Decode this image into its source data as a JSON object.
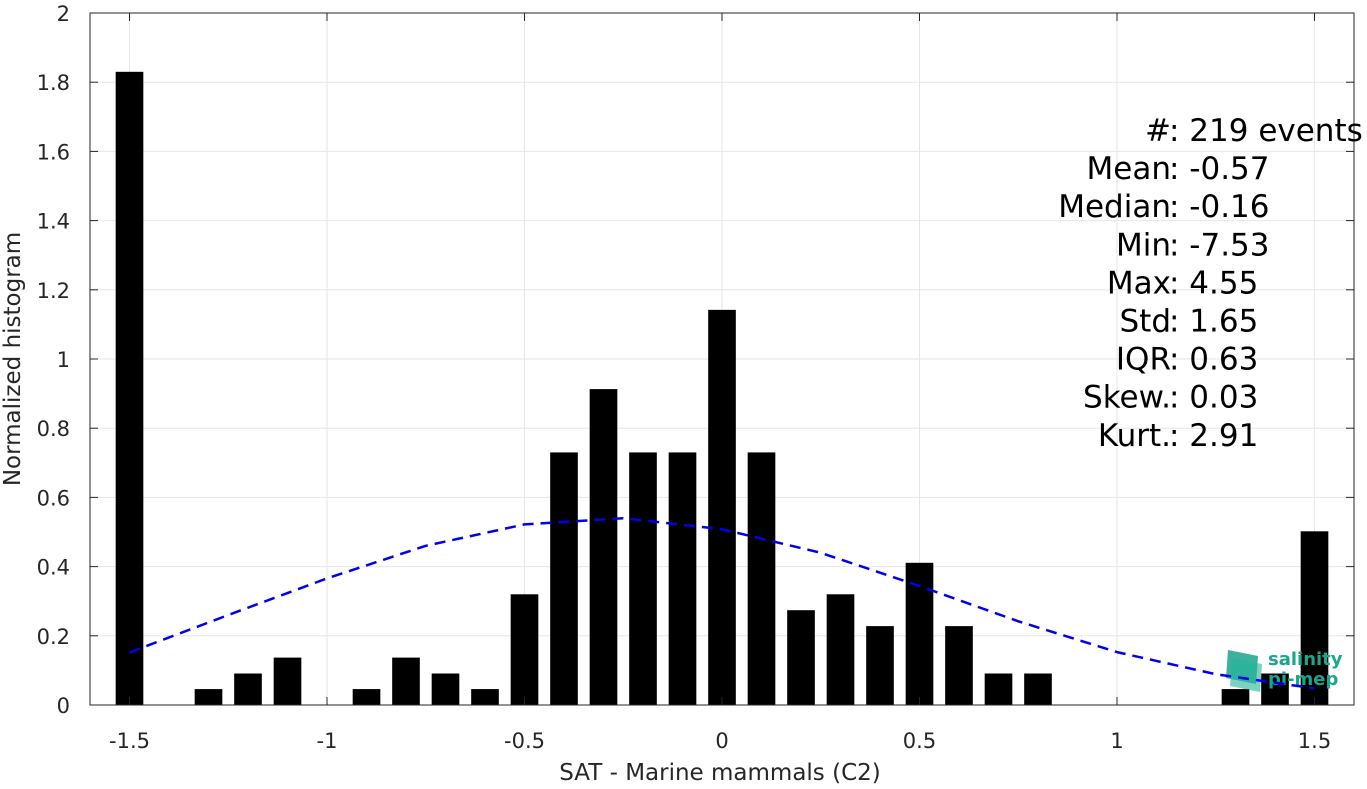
{
  "chart_data": {
    "type": "bar",
    "xlabel": "SAT - Marine mammals (C2)",
    "ylabel": "Normalized histogram",
    "xlim": [
      -1.6,
      1.6
    ],
    "ylim": [
      0,
      2
    ],
    "xticks": [
      "-1.5",
      "-1",
      "-0.5",
      "0",
      "0.5",
      "1",
      "1.5"
    ],
    "xtick_values": [
      -1.5,
      -1,
      -0.5,
      0,
      0.5,
      1,
      1.5
    ],
    "yticks": [
      "0",
      "0.2",
      "0.4",
      "0.6",
      "0.8",
      "1",
      "1.2",
      "1.4",
      "1.6",
      "1.8",
      "2"
    ],
    "ytick_values": [
      0,
      0.2,
      0.4,
      0.6,
      0.8,
      1,
      1.2,
      1.4,
      1.6,
      1.8,
      2
    ],
    "grid": true,
    "bar_width": 0.07,
    "bars": [
      {
        "x": -1.5,
        "value": 1.83
      },
      {
        "x": -1.3,
        "value": 0.046
      },
      {
        "x": -1.2,
        "value": 0.091
      },
      {
        "x": -1.1,
        "value": 0.137
      },
      {
        "x": -0.9,
        "value": 0.046
      },
      {
        "x": -0.8,
        "value": 0.137
      },
      {
        "x": -0.7,
        "value": 0.091
      },
      {
        "x": -0.6,
        "value": 0.046
      },
      {
        "x": -0.5,
        "value": 0.32
      },
      {
        "x": -0.4,
        "value": 0.73
      },
      {
        "x": -0.3,
        "value": 0.913
      },
      {
        "x": -0.2,
        "value": 0.73
      },
      {
        "x": -0.1,
        "value": 0.73
      },
      {
        "x": 0.0,
        "value": 1.142
      },
      {
        "x": 0.1,
        "value": 0.73
      },
      {
        "x": 0.2,
        "value": 0.274
      },
      {
        "x": 0.3,
        "value": 0.32
      },
      {
        "x": 0.4,
        "value": 0.228
      },
      {
        "x": 0.5,
        "value": 0.411
      },
      {
        "x": 0.6,
        "value": 0.228
      },
      {
        "x": 0.7,
        "value": 0.091
      },
      {
        "x": 0.8,
        "value": 0.091
      },
      {
        "x": 1.3,
        "value": 0.046
      },
      {
        "x": 1.4,
        "value": 0.091
      },
      {
        "x": 1.5,
        "value": 0.502
      }
    ],
    "bar_color": "#000000",
    "fit_curve": {
      "style": "dashed",
      "color": "#0000ee",
      "x_range": [
        -1.5,
        1.5
      ],
      "points": [
        {
          "x": -1.5,
          "y": 0.152
        },
        {
          "x": -1.25,
          "y": 0.26
        },
        {
          "x": -1.0,
          "y": 0.366
        },
        {
          "x": -0.75,
          "y": 0.46
        },
        {
          "x": -0.5,
          "y": 0.522
        },
        {
          "x": -0.25,
          "y": 0.54
        },
        {
          "x": 0.0,
          "y": 0.508
        },
        {
          "x": 0.25,
          "y": 0.44
        },
        {
          "x": 0.5,
          "y": 0.344
        },
        {
          "x": 0.75,
          "y": 0.242
        },
        {
          "x": 1.0,
          "y": 0.153
        },
        {
          "x": 1.25,
          "y": 0.089
        },
        {
          "x": 1.5,
          "y": 0.048
        }
      ]
    },
    "stats": [
      "#  : 219 events",
      "Mean : -0.57",
      "Median : -0.16",
      "Min : -7.53",
      "Max : 4.55",
      "Std : 1.65",
      "IQR : 0.63",
      "Skew. : 0.03",
      "Kurt. : 2.91"
    ],
    "logo": {
      "line1": "salinity",
      "line2": "pi-mep",
      "color": "#1aa58c"
    }
  }
}
